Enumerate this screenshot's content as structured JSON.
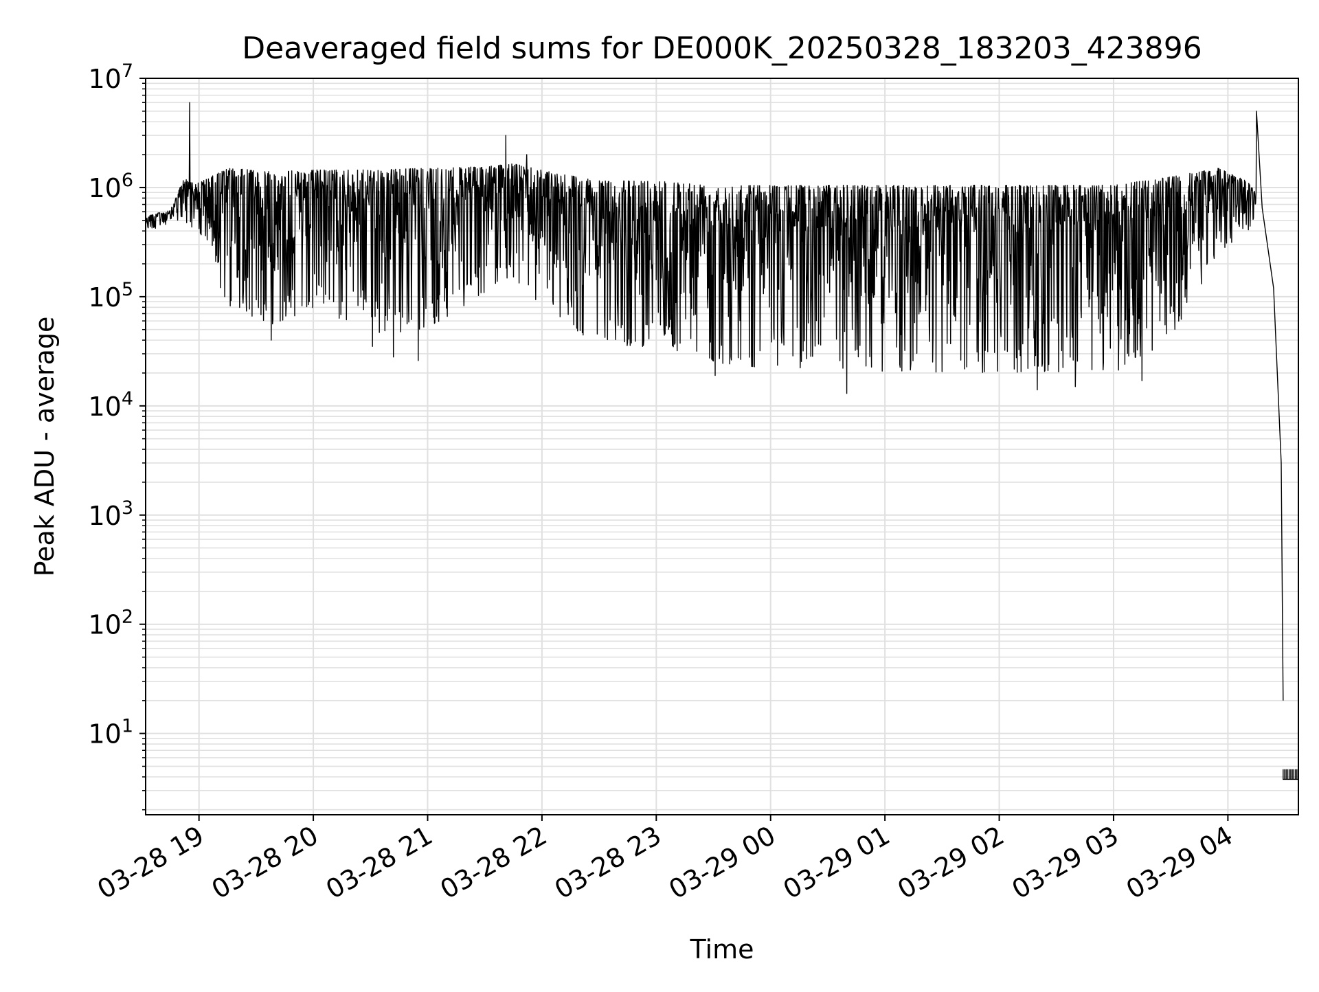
{
  "chart_data": {
    "type": "line",
    "title": "Deaveraged field sums for DE000K_20250328_183203_423896",
    "xlabel": "Time",
    "ylabel": "Peak ADU - average",
    "yscale": "log",
    "ylim": [
      1.8,
      10000000
    ],
    "xlim": [
      "2025-03-28 18:32",
      "2025-03-29 04:37"
    ],
    "grid": true,
    "line_color": "#000000",
    "grid_color": "#e0e0e0",
    "x_ticks": [
      {
        "value": "2025-03-28 19:00",
        "label": "03-28 19"
      },
      {
        "value": "2025-03-28 20:00",
        "label": "03-28 20"
      },
      {
        "value": "2025-03-28 21:00",
        "label": "03-28 21"
      },
      {
        "value": "2025-03-28 22:00",
        "label": "03-28 22"
      },
      {
        "value": "2025-03-28 23:00",
        "label": "03-28 23"
      },
      {
        "value": "2025-03-29 00:00",
        "label": "03-29 00"
      },
      {
        "value": "2025-03-29 01:00",
        "label": "03-29 01"
      },
      {
        "value": "2025-03-29 02:00",
        "label": "03-29 02"
      },
      {
        "value": "2025-03-29 03:00",
        "label": "03-29 03"
      },
      {
        "value": "2025-03-29 04:00",
        "label": "03-29 04"
      }
    ],
    "y_ticks": [
      {
        "value": 10,
        "base": "10",
        "exp": "1"
      },
      {
        "value": 100,
        "base": "10",
        "exp": "2"
      },
      {
        "value": 1000,
        "base": "10",
        "exp": "3"
      },
      {
        "value": 10000,
        "base": "10",
        "exp": "4"
      },
      {
        "value": 100000,
        "base": "10",
        "exp": "5"
      },
      {
        "value": 1000000,
        "base": "10",
        "exp": "6"
      },
      {
        "value": 10000000,
        "base": "10",
        "exp": "7"
      }
    ],
    "series": [
      {
        "envelope_upper": [
          [
            "2025-03-28 18:32",
            550000
          ],
          [
            "2025-03-28 18:45",
            620000
          ],
          [
            "2025-03-28 18:52",
            1200000
          ],
          [
            "2025-03-28 19:00",
            1100000
          ],
          [
            "2025-03-28 19:15",
            1500000
          ],
          [
            "2025-03-28 19:40",
            1400000
          ],
          [
            "2025-03-28 20:00",
            1450000
          ],
          [
            "2025-03-28 20:30",
            1450000
          ],
          [
            "2025-03-28 21:00",
            1500000
          ],
          [
            "2025-03-28 21:30",
            1550000
          ],
          [
            "2025-03-28 21:45",
            1650000
          ],
          [
            "2025-03-28 22:00",
            1450000
          ],
          [
            "2025-03-28 22:30",
            1150000
          ],
          [
            "2025-03-28 23:00",
            1150000
          ],
          [
            "2025-03-28 23:30",
            1050000
          ],
          [
            "2025-03-29 00:00",
            1050000
          ],
          [
            "2025-03-29 01:00",
            1050000
          ],
          [
            "2025-03-29 02:00",
            1050000
          ],
          [
            "2025-03-29 03:00",
            1050000
          ],
          [
            "2025-03-29 03:30",
            1250000
          ],
          [
            "2025-03-29 03:55",
            1500000
          ],
          [
            "2025-03-29 04:10",
            1150000
          ],
          [
            "2025-03-29 04:15",
            900000
          ]
        ],
        "envelope_lower": [
          [
            "2025-03-28 18:32",
            420000
          ],
          [
            "2025-03-28 18:45",
            420000
          ],
          [
            "2025-03-28 18:52",
            500000
          ],
          [
            "2025-03-28 19:00",
            380000
          ],
          [
            "2025-03-28 19:15",
            80000
          ],
          [
            "2025-03-28 19:40",
            55000
          ],
          [
            "2025-03-28 20:00",
            80000
          ],
          [
            "2025-03-28 20:30",
            45000
          ],
          [
            "2025-03-28 21:00",
            50000
          ],
          [
            "2025-03-28 21:30",
            110000
          ],
          [
            "2025-03-28 21:45",
            150000
          ],
          [
            "2025-03-28 22:00",
            80000
          ],
          [
            "2025-03-28 22:30",
            35000
          ],
          [
            "2025-03-28 23:00",
            35000
          ],
          [
            "2025-03-28 23:30",
            25000
          ],
          [
            "2025-03-29 00:00",
            22000
          ],
          [
            "2025-03-29 01:00",
            20000
          ],
          [
            "2025-03-29 02:00",
            20000
          ],
          [
            "2025-03-29 03:00",
            20000
          ],
          [
            "2025-03-29 03:30",
            40000
          ],
          [
            "2025-03-29 03:55",
            250000
          ],
          [
            "2025-03-29 04:10",
            380000
          ],
          [
            "2025-03-29 04:15",
            600000
          ]
        ],
        "spikes": [
          [
            "2025-03-28 18:55",
            6000000
          ],
          [
            "2025-03-28 21:41",
            3000000
          ],
          [
            "2025-03-28 21:52",
            2000000
          ],
          [
            "2025-03-29 04:19",
            5000000
          ]
        ],
        "dips": [
          [
            "2025-03-28 19:38",
            40000
          ],
          [
            "2025-03-28 20:31",
            35000
          ],
          [
            "2025-03-28 20:42",
            28000
          ],
          [
            "2025-03-28 20:55",
            26000
          ],
          [
            "2025-03-28 23:31",
            19000
          ],
          [
            "2025-03-29 00:40",
            13000
          ],
          [
            "2025-03-29 02:20",
            14000
          ],
          [
            "2025-03-29 02:40",
            15000
          ],
          [
            "2025-03-29 03:15",
            17000
          ]
        ],
        "decay": [
          [
            "2025-03-29 04:18",
            650000
          ],
          [
            "2025-03-29 04:24",
            120000
          ],
          [
            "2025-03-29 04:28",
            3000
          ],
          [
            "2025-03-29 04:29",
            20
          ]
        ],
        "tail_floor": [
          [
            "2025-03-29 04:29",
            3.8
          ],
          [
            "2025-03-29 04:37",
            3.8
          ]
        ],
        "tail_top": 4.7
      }
    ]
  }
}
